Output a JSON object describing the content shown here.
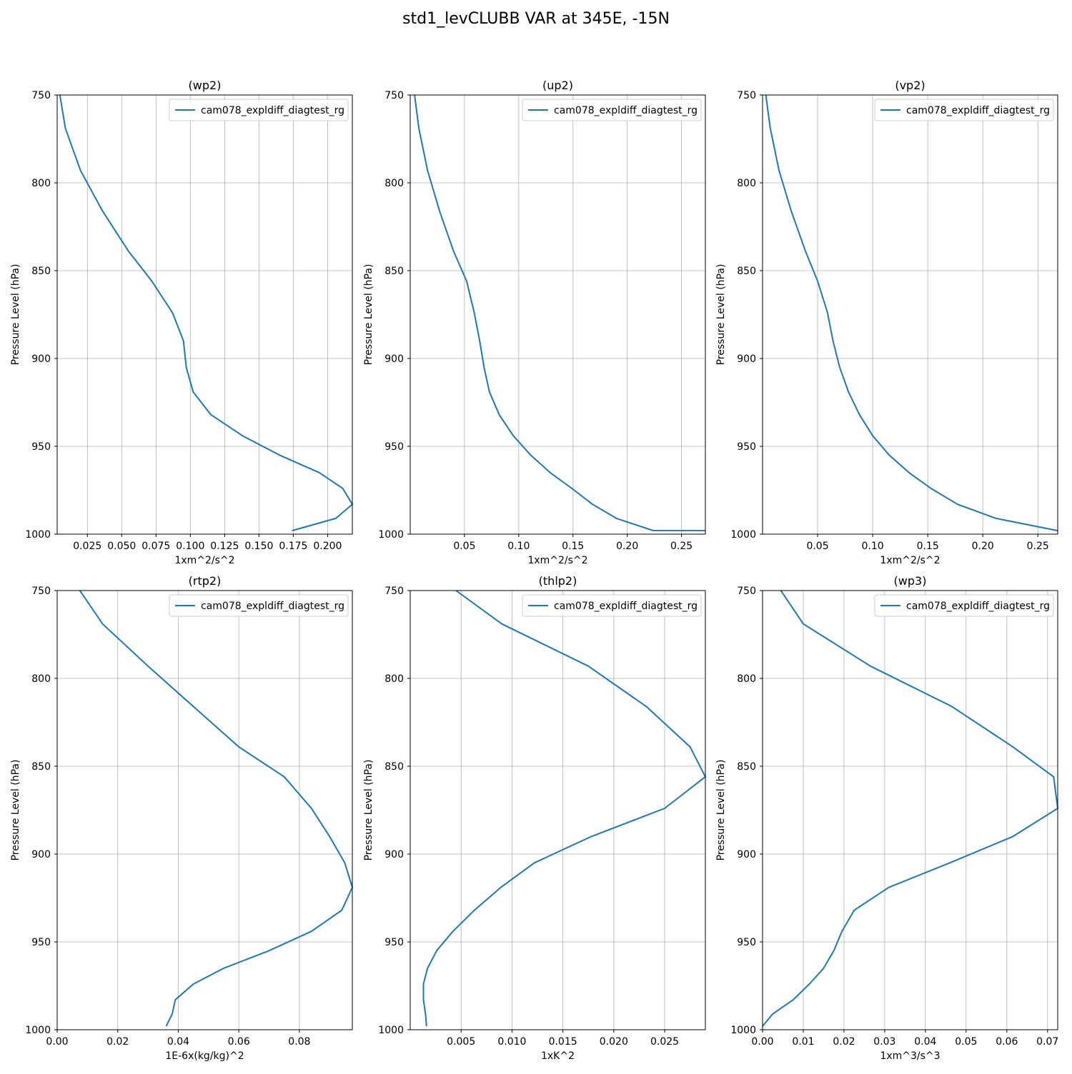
{
  "figure": {
    "title": "std1_levCLUBB VAR at 345E, -15N"
  },
  "chart_data": [
    {
      "type": "line",
      "title": "(wp2)",
      "xlabel": "1xm^2/s^2",
      "ylabel": "Pressure Level (hPa)",
      "xlim": [
        0.003,
        0.218
      ],
      "ylim": [
        1000,
        750
      ],
      "y_inverted": true,
      "grid": true,
      "legend_position": "top-right",
      "xticks": [
        0.025,
        0.05,
        0.075,
        0.1,
        0.125,
        0.15,
        0.175,
        0.2
      ],
      "xtick_labels": [
        "0.025",
        "0.050",
        "0.075",
        "0.100",
        "0.125",
        "0.150",
        "0.175",
        "0.200"
      ],
      "yticks": [
        750,
        800,
        850,
        900,
        950,
        1000
      ],
      "ytick_labels": [
        "750",
        "800",
        "850",
        "900",
        "950",
        "1000"
      ],
      "series": [
        {
          "name": "cam078_expldiff_diagtest_rg",
          "color": "#1f77b4",
          "x": [
            0.005,
            0.009,
            0.02,
            0.036,
            0.055,
            0.072,
            0.087,
            0.095,
            0.097,
            0.102,
            0.115,
            0.138,
            0.165,
            0.194,
            0.211,
            0.218,
            0.206,
            0.174
          ],
          "y": [
            750,
            769,
            793,
            816,
            839,
            856,
            874,
            890,
            905,
            919,
            932,
            944,
            955,
            965,
            974,
            983,
            991,
            998
          ]
        }
      ]
    },
    {
      "type": "line",
      "title": "(up2)",
      "xlabel": "1xm^2/s^2",
      "ylabel": "Pressure Level (hPa)",
      "xlim": [
        0.0,
        0.272
      ],
      "ylim": [
        1000,
        750
      ],
      "y_inverted": true,
      "grid": true,
      "legend_position": "top-right",
      "xticks": [
        0.05,
        0.1,
        0.15,
        0.2,
        0.25
      ],
      "xtick_labels": [
        "0.05",
        "0.10",
        "0.15",
        "0.20",
        "0.25"
      ],
      "yticks": [
        750,
        800,
        850,
        900,
        950,
        1000
      ],
      "ytick_labels": [
        "750",
        "800",
        "850",
        "900",
        "950",
        "1000"
      ],
      "series": [
        {
          "name": "cam078_expldiff_diagtest_rg",
          "color": "#1f77b4",
          "x": [
            0.004,
            0.008,
            0.016,
            0.027,
            0.04,
            0.052,
            0.059,
            0.064,
            0.068,
            0.073,
            0.082,
            0.095,
            0.111,
            0.129,
            0.149,
            0.168,
            0.19,
            0.224,
            0.272
          ],
          "y": [
            750,
            769,
            793,
            816,
            839,
            856,
            874,
            890,
            905,
            919,
            932,
            944,
            955,
            965,
            974,
            983,
            991,
            998,
            998
          ]
        }
      ]
    },
    {
      "type": "line",
      "title": "(vp2)",
      "xlabel": "1xm^2/s^2",
      "ylabel": "Pressure Level (hPa)",
      "xlim": [
        0.0,
        0.268
      ],
      "ylim": [
        1000,
        750
      ],
      "y_inverted": true,
      "grid": true,
      "legend_position": "top-right",
      "xticks": [
        0.05,
        0.1,
        0.15,
        0.2,
        0.25
      ],
      "xtick_labels": [
        "0.05",
        "0.10",
        "0.15",
        "0.20",
        "0.25"
      ],
      "yticks": [
        750,
        800,
        850,
        900,
        950,
        1000
      ],
      "ytick_labels": [
        "750",
        "800",
        "850",
        "900",
        "950",
        "1000"
      ],
      "series": [
        {
          "name": "cam078_expldiff_diagtest_rg",
          "color": "#1f77b4",
          "x": [
            0.003,
            0.007,
            0.015,
            0.026,
            0.039,
            0.05,
            0.059,
            0.064,
            0.07,
            0.078,
            0.088,
            0.1,
            0.115,
            0.133,
            0.153,
            0.177,
            0.212,
            0.268
          ],
          "y": [
            750,
            769,
            793,
            816,
            839,
            856,
            874,
            890,
            905,
            919,
            932,
            944,
            955,
            965,
            974,
            983,
            991,
            998
          ]
        }
      ]
    },
    {
      "type": "line",
      "title": "(rtp2)",
      "xlabel": "1E-6x(kg/kg)^2",
      "ylabel": "Pressure Level (hPa)",
      "xlim": [
        0.0,
        0.0975
      ],
      "ylim": [
        1000,
        750
      ],
      "y_inverted": true,
      "grid": true,
      "legend_position": "top-right",
      "xticks": [
        0.0,
        0.02,
        0.04,
        0.06,
        0.08
      ],
      "xtick_labels": [
        "0.00",
        "0.02",
        "0.04",
        "0.06",
        "0.08"
      ],
      "yticks": [
        750,
        800,
        850,
        900,
        950,
        1000
      ],
      "ytick_labels": [
        "750",
        "800",
        "850",
        "900",
        "950",
        "1000"
      ],
      "series": [
        {
          "name": "cam078_expldiff_diagtest_rg",
          "color": "#1f77b4",
          "x": [
            0.0075,
            0.015,
            0.03,
            0.045,
            0.06,
            0.075,
            0.084,
            0.09,
            0.095,
            0.0975,
            0.094,
            0.084,
            0.07,
            0.055,
            0.045,
            0.039,
            0.038,
            0.036
          ],
          "y": [
            750,
            769,
            793,
            816,
            839,
            856,
            874,
            890,
            905,
            919,
            932,
            944,
            955,
            965,
            974,
            983,
            991,
            998
          ]
        }
      ]
    },
    {
      "type": "line",
      "title": "(thlp2)",
      "xlabel": "1xK^2",
      "ylabel": "Pressure Level (hPa)",
      "xlim": [
        0.0,
        0.029
      ],
      "ylim": [
        1000,
        750
      ],
      "y_inverted": true,
      "grid": true,
      "legend_position": "top-right",
      "xticks": [
        0.005,
        0.01,
        0.015,
        0.02,
        0.025
      ],
      "xtick_labels": [
        "0.005",
        "0.010",
        "0.015",
        "0.020",
        "0.025"
      ],
      "yticks": [
        750,
        800,
        850,
        900,
        950,
        1000
      ],
      "ytick_labels": [
        "750",
        "800",
        "850",
        "900",
        "950",
        "1000"
      ],
      "series": [
        {
          "name": "cam078_expldiff_diagtest_rg",
          "color": "#1f77b4",
          "x": [
            0.0045,
            0.009,
            0.0175,
            0.0232,
            0.0275,
            0.029,
            0.025,
            0.0178,
            0.0122,
            0.0089,
            0.0063,
            0.0042,
            0.0026,
            0.0017,
            0.0013,
            0.0013,
            0.0015,
            0.0016
          ],
          "y": [
            750,
            769,
            793,
            816,
            839,
            856,
            874,
            890,
            905,
            919,
            932,
            944,
            955,
            965,
            974,
            983,
            991,
            998
          ]
        }
      ]
    },
    {
      "type": "line",
      "title": "(wp3)",
      "xlabel": "1xm^3/s^3",
      "ylabel": "Pressure Level (hPa)",
      "xlim": [
        0.0,
        0.0725
      ],
      "ylim": [
        1000,
        750
      ],
      "y_inverted": true,
      "grid": true,
      "legend_position": "top-right",
      "xticks": [
        0.0,
        0.01,
        0.02,
        0.03,
        0.04,
        0.05,
        0.06,
        0.07
      ],
      "xtick_labels": [
        "0.00",
        "0.01",
        "0.02",
        "0.03",
        "0.04",
        "0.05",
        "0.06",
        "0.07"
      ],
      "yticks": [
        750,
        800,
        850,
        900,
        950,
        1000
      ],
      "ytick_labels": [
        "750",
        "800",
        "850",
        "900",
        "950",
        "1000"
      ],
      "series": [
        {
          "name": "cam078_expldiff_diagtest_rg",
          "color": "#1f77b4",
          "x": [
            0.0045,
            0.01,
            0.0265,
            0.0465,
            0.0615,
            0.0715,
            0.0725,
            0.0615,
            0.046,
            0.031,
            0.0225,
            0.0195,
            0.0175,
            0.015,
            0.0115,
            0.0075,
            0.0025,
            0.0
          ],
          "y": [
            750,
            769,
            793,
            816,
            839,
            856,
            874,
            890,
            905,
            919,
            932,
            944,
            955,
            965,
            974,
            983,
            991,
            998
          ]
        }
      ]
    }
  ]
}
